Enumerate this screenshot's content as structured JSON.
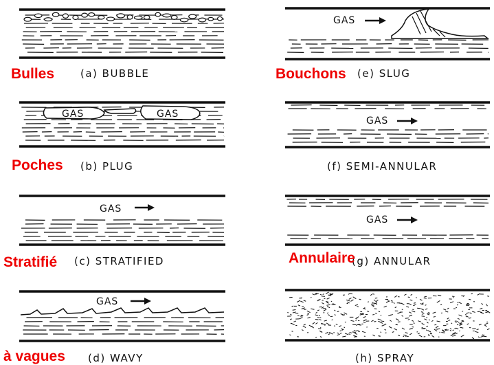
{
  "panels": [
    {
      "id": "a",
      "caption": "(a) BUBBLE",
      "french": "Bulles",
      "gas_labels": []
    },
    {
      "id": "b",
      "caption": "(b) PLUG",
      "french": "Poches",
      "gas_labels": [
        "GAS",
        "GAS"
      ]
    },
    {
      "id": "c",
      "caption": "(c) STRATIFIED",
      "french": "Stratifié",
      "gas_labels": [
        "GAS"
      ]
    },
    {
      "id": "d",
      "caption": "(d) WAVY",
      "french": "à vagues",
      "gas_labels": [
        "GAS"
      ]
    },
    {
      "id": "e",
      "caption": "(e) SLUG",
      "french": "Bouchons",
      "gas_labels": [
        "GAS"
      ]
    },
    {
      "id": "f",
      "caption": "(f) SEMI-ANNULAR",
      "french": "",
      "gas_labels": [
        "GAS"
      ]
    },
    {
      "id": "g",
      "caption": "(g) ANNULAR",
      "french": "Annulaire",
      "gas_labels": [
        "GAS"
      ]
    },
    {
      "id": "h",
      "caption": "(h) SPRAY",
      "french": "",
      "gas_labels": []
    }
  ],
  "colors": {
    "french_label": "#ee0000",
    "ink": "#111111"
  }
}
